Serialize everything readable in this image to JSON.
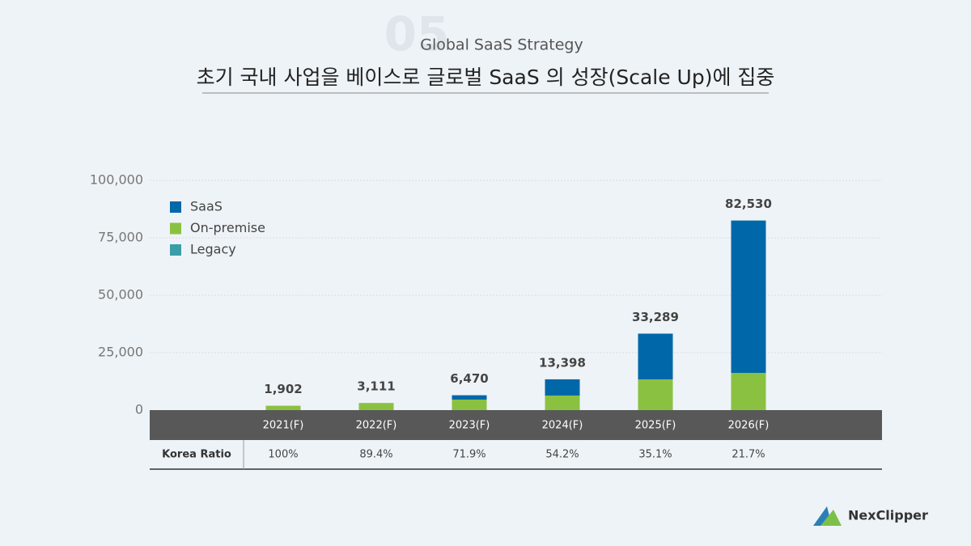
{
  "section_number": "05",
  "chart_data": {
    "type": "bar",
    "stacked": true,
    "subtitle": "Global SaaS Strategy",
    "title": "초기 국내 사업을 베이스로 글로벌 SaaS 의 성장(Scale Up)에 집중",
    "categories": [
      "2021(F)",
      "2022(F)",
      "2023(F)",
      "2024(F)",
      "2025(F)",
      "2026(F)"
    ],
    "series": [
      {
        "name": "SaaS",
        "color": "#0068a8",
        "values": [
          0,
          0,
          1890,
          7060,
          19910,
          66330
        ]
      },
      {
        "name": "On-premise",
        "color": "#8bc140",
        "values": [
          1902,
          3111,
          4580,
          6340,
          13380,
          16200
        ]
      },
      {
        "name": "Legacy",
        "color": "#3a9ea8",
        "values": [
          0,
          0,
          0,
          0,
          0,
          0
        ]
      }
    ],
    "totals": {
      "values": [
        1902,
        3111,
        6470,
        13398,
        33289,
        82530
      ],
      "value_labels": [
        "1,902",
        "3,111",
        "6,470",
        "13,398",
        "33,289",
        "82,530"
      ]
    },
    "ylim": [
      0,
      100000
    ],
    "yticks": [
      0,
      {
        "value": 25000,
        "label": "25,000"
      },
      {
        "value": 50000,
        "label": "50,000"
      },
      {
        "value": 75000,
        "label": "75,000"
      },
      {
        "value": 100000,
        "label": "100,000"
      }
    ],
    "grid": true,
    "legend": "top-left",
    "ratio_row": {
      "label": "Korea Ratio",
      "values": [
        100,
        89.4,
        71.9,
        54.2,
        35.1,
        21.7
      ],
      "value_labels": [
        "100%",
        "89.4%",
        "71.9%",
        "54.2%",
        "35.1%",
        "21.7%"
      ]
    }
  },
  "logo": "NexClipper"
}
